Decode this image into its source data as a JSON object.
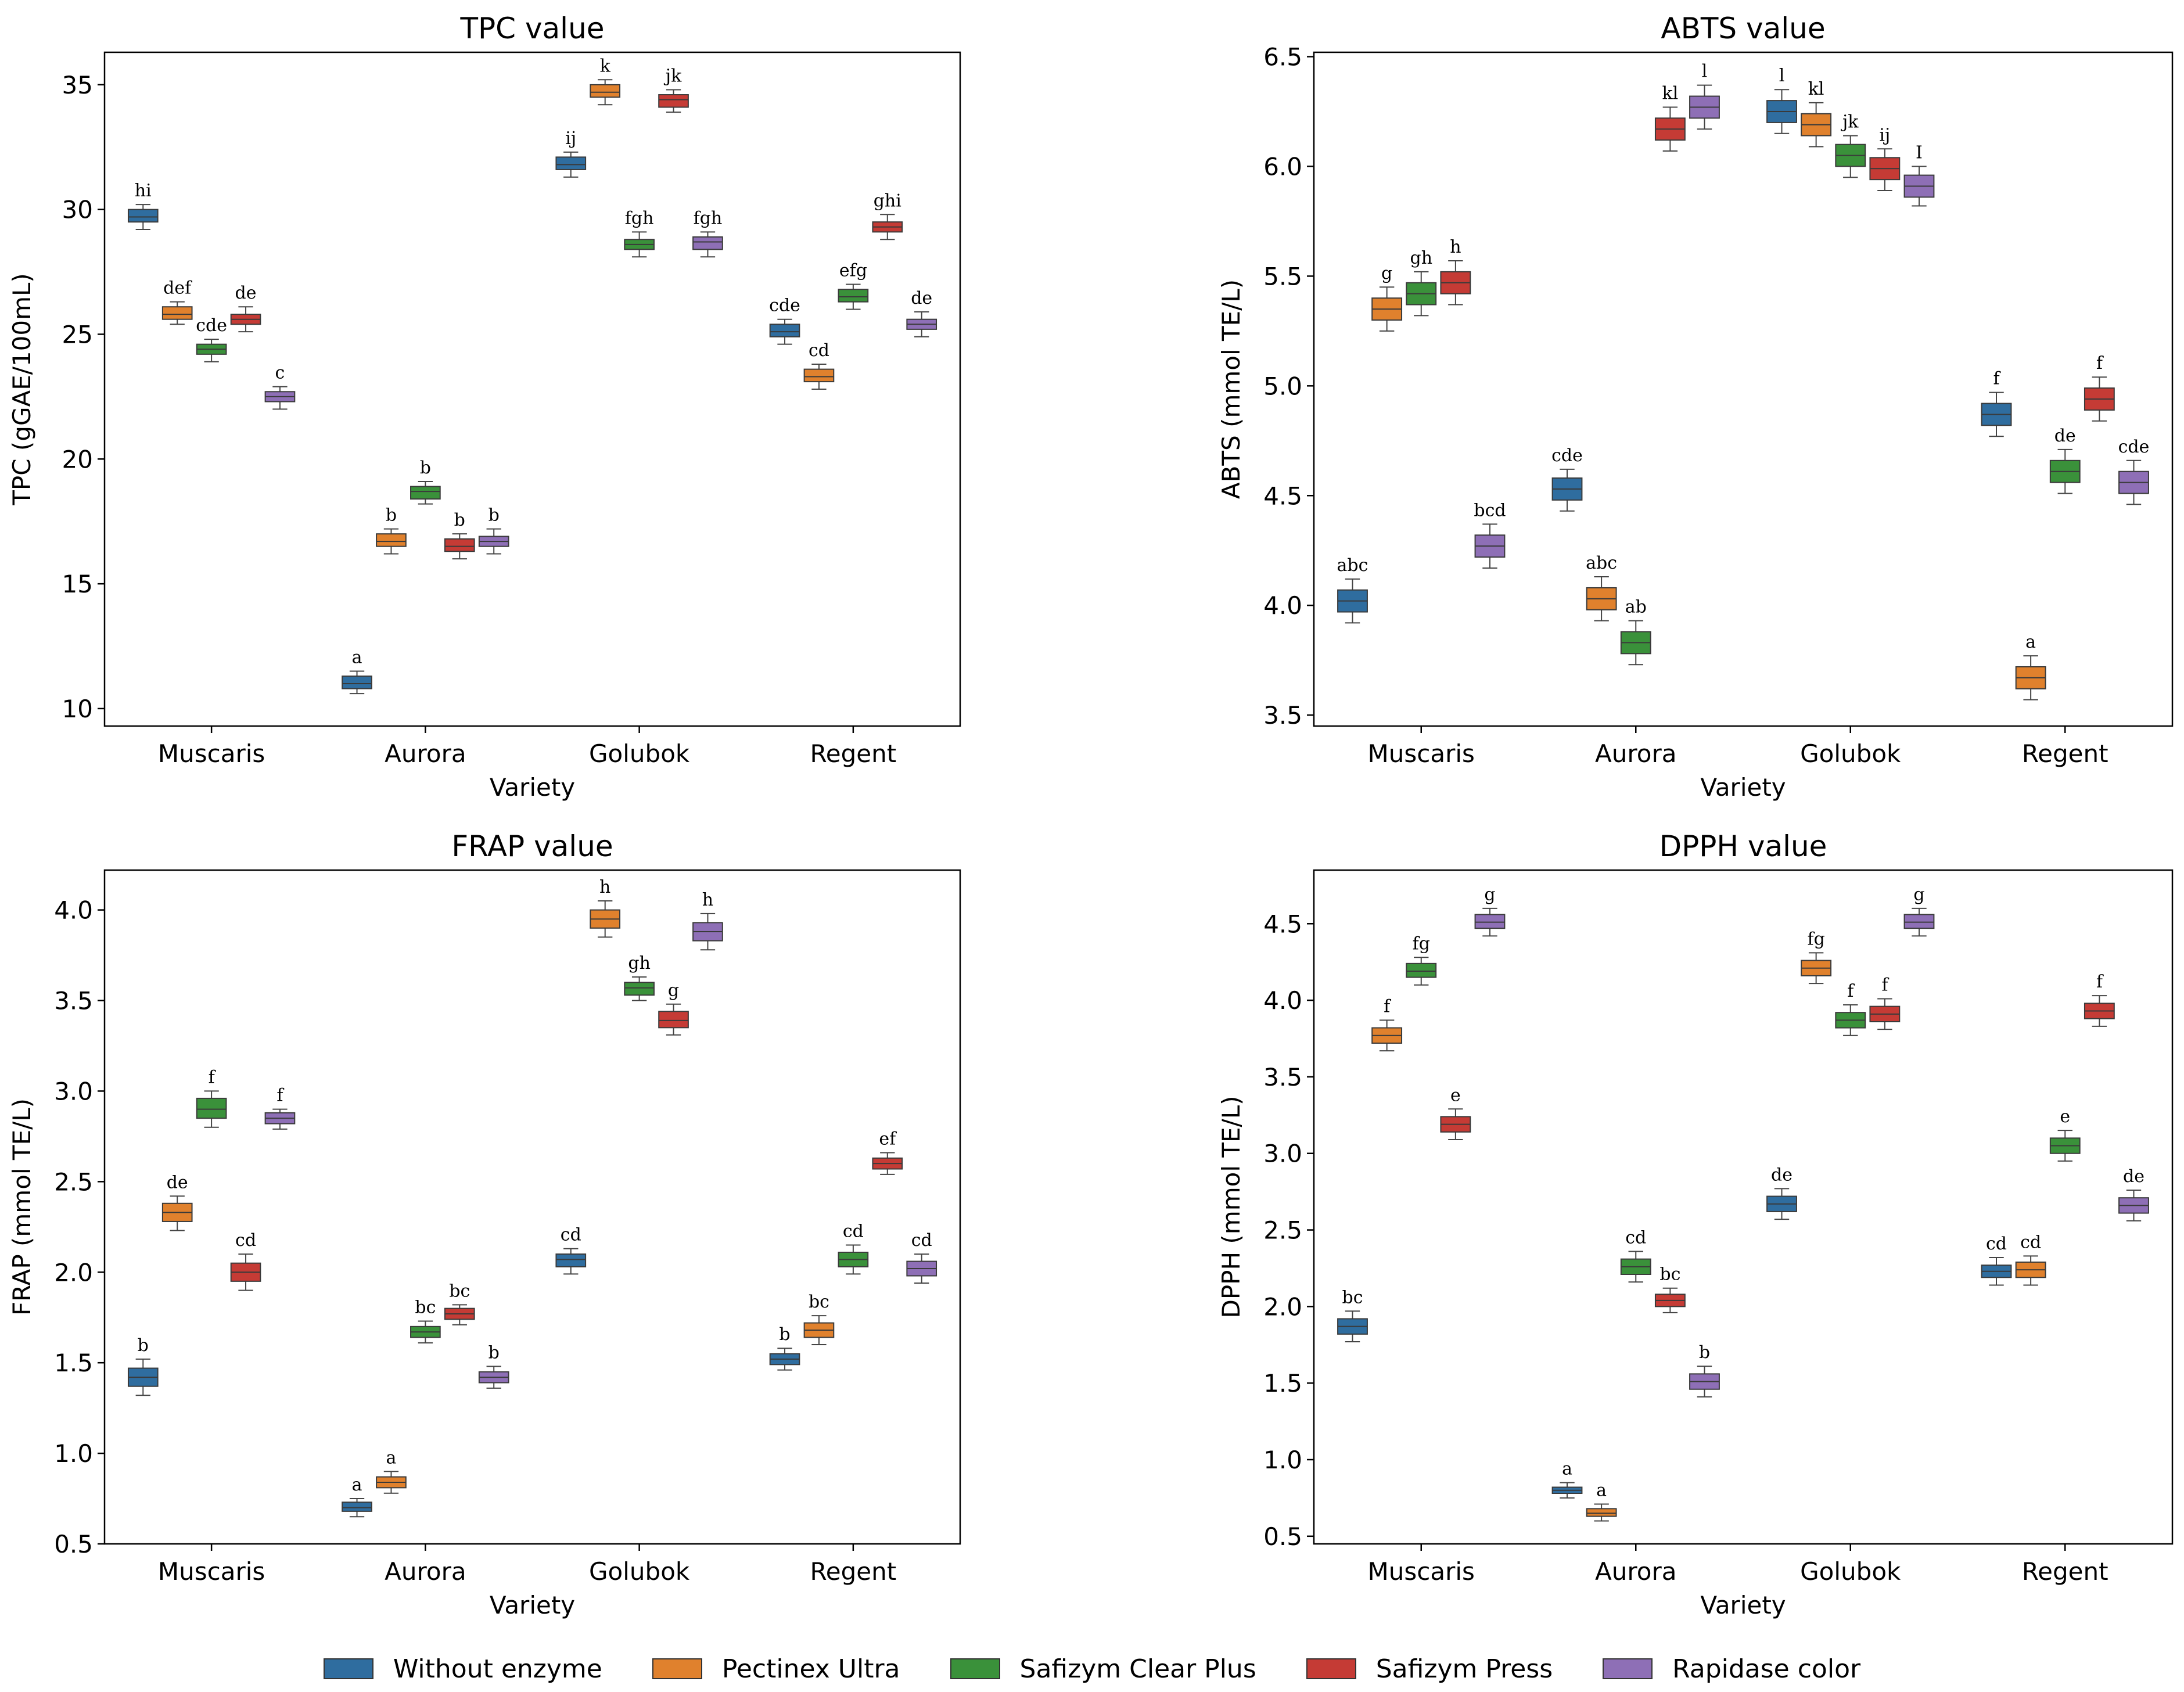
{
  "series": [
    {
      "name": "Without enzyme",
      "color": "#2f6d9f"
    },
    {
      "name": "Pectinex Ultra",
      "color": "#e0812d"
    },
    {
      "name": "Safizym Clear Plus",
      "color": "#3a913a"
    },
    {
      "name": "Safizym Press",
      "color": "#c53b35"
    },
    {
      "name": "Rapidase color",
      "color": "#8e6fb6"
    }
  ],
  "chart_data": [
    {
      "type": "box",
      "title": "TPC value",
      "xlabel": "Variety",
      "ylabel": "TPC (gGAE/100mL)",
      "categories": [
        "Muscaris",
        "Aurora",
        "Golubok",
        "Regent"
      ],
      "ylim": [
        9.3,
        36.3
      ],
      "yticks": [
        10,
        15,
        20,
        25,
        30,
        35
      ],
      "ytick_labels": [
        "10",
        "15",
        "20",
        "25",
        "30",
        "35"
      ],
      "boxes": [
        [
          {
            "median": 29.7,
            "q1": 29.5,
            "q3": 30.0,
            "min": 29.2,
            "max": 30.2,
            "label": "hi"
          },
          {
            "median": 25.8,
            "q1": 25.6,
            "q3": 26.1,
            "min": 25.4,
            "max": 26.3,
            "label": "def"
          },
          {
            "median": 24.4,
            "q1": 24.2,
            "q3": 24.6,
            "min": 23.9,
            "max": 24.8,
            "label": "cde"
          },
          {
            "median": 25.6,
            "q1": 25.4,
            "q3": 25.8,
            "min": 25.1,
            "max": 26.1,
            "label": "de"
          },
          {
            "median": 22.5,
            "q1": 22.3,
            "q3": 22.7,
            "min": 22.0,
            "max": 22.9,
            "label": "c"
          }
        ],
        [
          {
            "median": 11.0,
            "q1": 10.8,
            "q3": 11.3,
            "min": 10.6,
            "max": 11.5,
            "label": "a"
          },
          {
            "median": 16.7,
            "q1": 16.5,
            "q3": 17.0,
            "min": 16.2,
            "max": 17.2,
            "label": "b"
          },
          {
            "median": 18.7,
            "q1": 18.4,
            "q3": 18.9,
            "min": 18.2,
            "max": 19.1,
            "label": "b"
          },
          {
            "median": 16.5,
            "q1": 16.3,
            "q3": 16.8,
            "min": 16.0,
            "max": 17.0,
            "label": "b"
          },
          {
            "median": 16.7,
            "q1": 16.5,
            "q3": 16.9,
            "min": 16.2,
            "max": 17.2,
            "label": "b"
          }
        ],
        [
          {
            "median": 31.8,
            "q1": 31.6,
            "q3": 32.1,
            "min": 31.3,
            "max": 32.3,
            "label": "ij"
          },
          {
            "median": 34.7,
            "q1": 34.5,
            "q3": 35.0,
            "min": 34.2,
            "max": 35.2,
            "label": "k"
          },
          {
            "median": 28.6,
            "q1": 28.4,
            "q3": 28.8,
            "min": 28.1,
            "max": 29.1,
            "label": "fgh"
          },
          {
            "median": 34.4,
            "q1": 34.1,
            "q3": 34.6,
            "min": 33.9,
            "max": 34.8,
            "label": "jk"
          },
          {
            "median": 28.7,
            "q1": 28.4,
            "q3": 28.9,
            "min": 28.1,
            "max": 29.1,
            "label": "fgh"
          }
        ],
        [
          {
            "median": 25.1,
            "q1": 24.9,
            "q3": 25.4,
            "min": 24.6,
            "max": 25.6,
            "label": "cde"
          },
          {
            "median": 23.3,
            "q1": 23.1,
            "q3": 23.6,
            "min": 22.8,
            "max": 23.8,
            "label": "cd"
          },
          {
            "median": 26.5,
            "q1": 26.3,
            "q3": 26.8,
            "min": 26.0,
            "max": 27.0,
            "label": "efg"
          },
          {
            "median": 29.3,
            "q1": 29.1,
            "q3": 29.5,
            "min": 28.8,
            "max": 29.8,
            "label": "ghi"
          },
          {
            "median": 25.4,
            "q1": 25.2,
            "q3": 25.6,
            "min": 24.9,
            "max": 25.9,
            "label": "de"
          }
        ]
      ]
    },
    {
      "type": "box",
      "title": "ABTS value",
      "xlabel": "Variety",
      "ylabel": "ABTS (mmol TE/L)",
      "categories": [
        "Muscaris",
        "Aurora",
        "Golubok",
        "Regent"
      ],
      "ylim": [
        3.45,
        6.52
      ],
      "yticks": [
        3.5,
        4.0,
        4.5,
        5.0,
        5.5,
        6.0,
        6.5
      ],
      "ytick_labels": [
        "3.5",
        "4.0",
        "4.5",
        "5.0",
        "5.5",
        "6.0",
        "6.5"
      ],
      "boxes": [
        [
          {
            "median": 4.02,
            "q1": 3.97,
            "q3": 4.07,
            "min": 3.92,
            "max": 4.12,
            "label": "abc"
          },
          {
            "median": 5.35,
            "q1": 5.3,
            "q3": 5.4,
            "min": 5.25,
            "max": 5.45,
            "label": "g"
          },
          {
            "median": 5.42,
            "q1": 5.37,
            "q3": 5.47,
            "min": 5.32,
            "max": 5.52,
            "label": "gh"
          },
          {
            "median": 5.47,
            "q1": 5.42,
            "q3": 5.52,
            "min": 5.37,
            "max": 5.57,
            "label": "h"
          },
          {
            "median": 4.27,
            "q1": 4.22,
            "q3": 4.32,
            "min": 4.17,
            "max": 4.37,
            "label": "bcd"
          }
        ],
        [
          {
            "median": 4.53,
            "q1": 4.48,
            "q3": 4.58,
            "min": 4.43,
            "max": 4.62,
            "label": "cde"
          },
          {
            "median": 4.03,
            "q1": 3.98,
            "q3": 4.08,
            "min": 3.93,
            "max": 4.13,
            "label": "abc"
          },
          {
            "median": 3.83,
            "q1": 3.78,
            "q3": 3.88,
            "min": 3.73,
            "max": 3.93,
            "label": "ab"
          },
          {
            "median": 6.17,
            "q1": 6.12,
            "q3": 6.22,
            "min": 6.07,
            "max": 6.27,
            "label": "kl"
          },
          {
            "median": 6.27,
            "q1": 6.22,
            "q3": 6.32,
            "min": 6.17,
            "max": 6.37,
            "label": "l"
          }
        ],
        [
          {
            "median": 6.25,
            "q1": 6.2,
            "q3": 6.3,
            "min": 6.15,
            "max": 6.35,
            "label": "l"
          },
          {
            "median": 6.19,
            "q1": 6.14,
            "q3": 6.24,
            "min": 6.09,
            "max": 6.29,
            "label": "kl"
          },
          {
            "median": 6.05,
            "q1": 6.0,
            "q3": 6.1,
            "min": 5.95,
            "max": 6.14,
            "label": "jk"
          },
          {
            "median": 5.99,
            "q1": 5.94,
            "q3": 6.04,
            "min": 5.89,
            "max": 6.08,
            "label": "ij"
          },
          {
            "median": 5.91,
            "q1": 5.86,
            "q3": 5.96,
            "min": 5.82,
            "max": 6.0,
            "label": "I"
          }
        ],
        [
          {
            "median": 4.87,
            "q1": 4.82,
            "q3": 4.92,
            "min": 4.77,
            "max": 4.97,
            "label": "f"
          },
          {
            "median": 3.67,
            "q1": 3.62,
            "q3": 3.72,
            "min": 3.57,
            "max": 3.77,
            "label": "a"
          },
          {
            "median": 4.61,
            "q1": 4.56,
            "q3": 4.66,
            "min": 4.51,
            "max": 4.71,
            "label": "de"
          },
          {
            "median": 4.94,
            "q1": 4.89,
            "q3": 4.99,
            "min": 4.84,
            "max": 5.04,
            "label": "f"
          },
          {
            "median": 4.56,
            "q1": 4.51,
            "q3": 4.61,
            "min": 4.46,
            "max": 4.66,
            "label": "cde"
          }
        ]
      ]
    },
    {
      "type": "box",
      "title": "FRAP value",
      "xlabel": "Variety",
      "ylabel": "FRAP (mmol TE/L)",
      "categories": [
        "Muscaris",
        "Aurora",
        "Golubok",
        "Regent"
      ],
      "ylim": [
        0.5,
        4.22
      ],
      "yticks": [
        0.5,
        1.0,
        1.5,
        2.0,
        2.5,
        3.0,
        3.5,
        4.0
      ],
      "ytick_labels": [
        "0.5",
        "1.0",
        "1.5",
        "2.0",
        "2.5",
        "3.0",
        "3.5",
        "4.0"
      ],
      "boxes": [
        [
          {
            "median": 1.42,
            "q1": 1.37,
            "q3": 1.47,
            "min": 1.32,
            "max": 1.52,
            "label": "b"
          },
          {
            "median": 2.33,
            "q1": 2.28,
            "q3": 2.38,
            "min": 2.23,
            "max": 2.42,
            "label": "de"
          },
          {
            "median": 2.9,
            "q1": 2.85,
            "q3": 2.96,
            "min": 2.8,
            "max": 3.0,
            "label": "f"
          },
          {
            "median": 2.0,
            "q1": 1.95,
            "q3": 2.05,
            "min": 1.9,
            "max": 2.1,
            "label": "cd"
          },
          {
            "median": 2.85,
            "q1": 2.82,
            "q3": 2.88,
            "min": 2.79,
            "max": 2.9,
            "label": "f"
          }
        ],
        [
          {
            "median": 0.7,
            "q1": 0.68,
            "q3": 0.73,
            "min": 0.65,
            "max": 0.75,
            "label": "a"
          },
          {
            "median": 0.84,
            "q1": 0.81,
            "q3": 0.87,
            "min": 0.78,
            "max": 0.9,
            "label": "a"
          },
          {
            "median": 1.67,
            "q1": 1.64,
            "q3": 1.7,
            "min": 1.61,
            "max": 1.73,
            "label": "bc"
          },
          {
            "median": 1.77,
            "q1": 1.74,
            "q3": 1.8,
            "min": 1.71,
            "max": 1.82,
            "label": "bc"
          },
          {
            "median": 1.42,
            "q1": 1.39,
            "q3": 1.45,
            "min": 1.36,
            "max": 1.48,
            "label": "b"
          }
        ],
        [
          {
            "median": 2.07,
            "q1": 2.03,
            "q3": 2.1,
            "min": 1.99,
            "max": 2.13,
            "label": "cd"
          },
          {
            "median": 3.95,
            "q1": 3.9,
            "q3": 4.0,
            "min": 3.85,
            "max": 4.05,
            "label": "h"
          },
          {
            "median": 3.57,
            "q1": 3.53,
            "q3": 3.6,
            "min": 3.5,
            "max": 3.63,
            "label": "gh"
          },
          {
            "median": 3.39,
            "q1": 3.35,
            "q3": 3.44,
            "min": 3.31,
            "max": 3.48,
            "label": "g"
          },
          {
            "median": 3.88,
            "q1": 3.83,
            "q3": 3.93,
            "min": 3.78,
            "max": 3.98,
            "label": "h"
          }
        ],
        [
          {
            "median": 1.52,
            "q1": 1.49,
            "q3": 1.55,
            "min": 1.46,
            "max": 1.58,
            "label": "b"
          },
          {
            "median": 1.68,
            "q1": 1.64,
            "q3": 1.72,
            "min": 1.6,
            "max": 1.76,
            "label": "bc"
          },
          {
            "median": 2.07,
            "q1": 2.03,
            "q3": 2.11,
            "min": 1.99,
            "max": 2.15,
            "label": "cd"
          },
          {
            "median": 2.6,
            "q1": 2.57,
            "q3": 2.63,
            "min": 2.54,
            "max": 2.66,
            "label": "ef"
          },
          {
            "median": 2.02,
            "q1": 1.98,
            "q3": 2.06,
            "min": 1.94,
            "max": 2.1,
            "label": "cd"
          }
        ]
      ]
    },
    {
      "type": "box",
      "title": "DPPH value",
      "xlabel": "Variety",
      "ylabel": "DPPH (mmol TE/L)",
      "categories": [
        "Muscaris",
        "Aurora",
        "Golubok",
        "Regent"
      ],
      "ylim": [
        0.45,
        4.85
      ],
      "yticks": [
        0.5,
        1.0,
        1.5,
        2.0,
        2.5,
        3.0,
        3.5,
        4.0,
        4.5
      ],
      "ytick_labels": [
        "0.5",
        "1.0",
        "1.5",
        "2.0",
        "2.5",
        "3.0",
        "3.5",
        "4.0",
        "4.5"
      ],
      "boxes": [
        [
          {
            "median": 1.87,
            "q1": 1.82,
            "q3": 1.92,
            "min": 1.77,
            "max": 1.97,
            "label": "bc"
          },
          {
            "median": 3.77,
            "q1": 3.72,
            "q3": 3.82,
            "min": 3.67,
            "max": 3.87,
            "label": "f"
          },
          {
            "median": 4.19,
            "q1": 4.15,
            "q3": 4.24,
            "min": 4.1,
            "max": 4.28,
            "label": "fg"
          },
          {
            "median": 3.19,
            "q1": 3.14,
            "q3": 3.24,
            "min": 3.09,
            "max": 3.29,
            "label": "e"
          },
          {
            "median": 4.51,
            "q1": 4.47,
            "q3": 4.56,
            "min": 4.42,
            "max": 4.6,
            "label": "g"
          }
        ],
        [
          {
            "median": 0.8,
            "q1": 0.78,
            "q3": 0.82,
            "min": 0.75,
            "max": 0.85,
            "label": "a"
          },
          {
            "median": 0.65,
            "q1": 0.63,
            "q3": 0.68,
            "min": 0.6,
            "max": 0.71,
            "label": "a"
          },
          {
            "median": 2.26,
            "q1": 2.21,
            "q3": 2.31,
            "min": 2.16,
            "max": 2.36,
            "label": "cd"
          },
          {
            "median": 2.04,
            "q1": 2.0,
            "q3": 2.08,
            "min": 1.96,
            "max": 2.12,
            "label": "bc"
          },
          {
            "median": 1.51,
            "q1": 1.46,
            "q3": 1.56,
            "min": 1.41,
            "max": 1.61,
            "label": "b"
          }
        ],
        [
          {
            "median": 2.67,
            "q1": 2.62,
            "q3": 2.72,
            "min": 2.57,
            "max": 2.77,
            "label": "de"
          },
          {
            "median": 4.21,
            "q1": 4.16,
            "q3": 4.26,
            "min": 4.11,
            "max": 4.31,
            "label": "fg"
          },
          {
            "median": 3.87,
            "q1": 3.82,
            "q3": 3.92,
            "min": 3.77,
            "max": 3.97,
            "label": "f"
          },
          {
            "median": 3.91,
            "q1": 3.86,
            "q3": 3.96,
            "min": 3.81,
            "max": 4.01,
            "label": "f"
          },
          {
            "median": 4.51,
            "q1": 4.47,
            "q3": 4.56,
            "min": 4.42,
            "max": 4.6,
            "label": "g"
          }
        ],
        [
          {
            "median": 2.23,
            "q1": 2.19,
            "q3": 2.27,
            "min": 2.14,
            "max": 2.32,
            "label": "cd"
          },
          {
            "median": 2.24,
            "q1": 2.19,
            "q3": 2.29,
            "min": 2.14,
            "max": 2.33,
            "label": "cd"
          },
          {
            "median": 3.05,
            "q1": 3.0,
            "q3": 3.1,
            "min": 2.95,
            "max": 3.15,
            "label": "e"
          },
          {
            "median": 3.93,
            "q1": 3.88,
            "q3": 3.98,
            "min": 3.83,
            "max": 4.03,
            "label": "f"
          },
          {
            "median": 2.66,
            "q1": 2.61,
            "q3": 2.71,
            "min": 2.56,
            "max": 2.76,
            "label": "de"
          }
        ]
      ]
    }
  ]
}
